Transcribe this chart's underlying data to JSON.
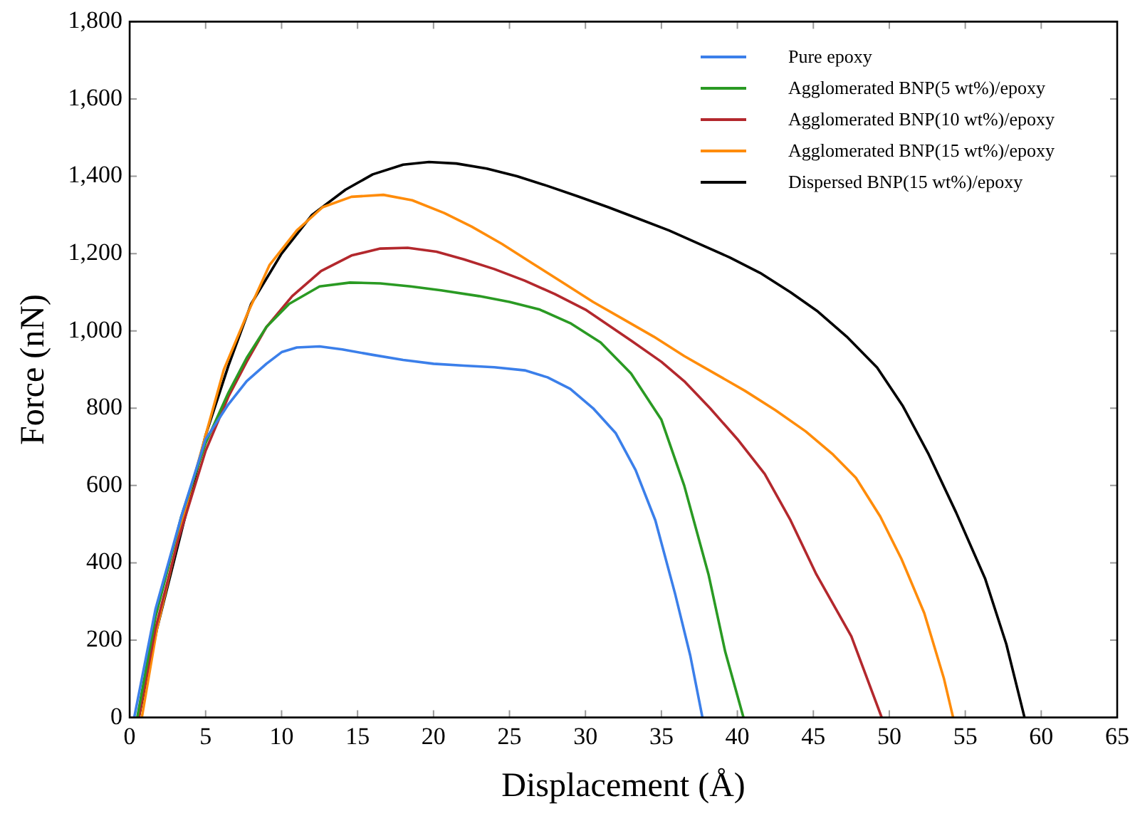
{
  "chart_data": {
    "type": "line",
    "xlabel": "Displacement (Å)",
    "ylabel": "Force (nN)",
    "xlim": [
      0,
      65
    ],
    "xticks": [
      0,
      5,
      10,
      15,
      20,
      25,
      30,
      35,
      40,
      45,
      50,
      55,
      60,
      65
    ],
    "ylim": [
      0,
      1800
    ],
    "yticks": [
      0,
      200,
      400,
      600,
      800,
      {
        "value": 1000,
        "label": "1,000"
      },
      {
        "value": 1200,
        "label": "1,200"
      },
      {
        "value": 1400,
        "label": "1,400"
      },
      {
        "value": 1600,
        "label": "1,600"
      },
      {
        "value": 1800,
        "label": "1,800"
      }
    ],
    "grid": false,
    "legend": "top right",
    "marker": "none",
    "line_style": "solid",
    "series": [
      {
        "name": "Pure epoxy",
        "color": "#3b7fea",
        "x": [
          0.3,
          1.7,
          3.4,
          5,
          6.5,
          7.7,
          9,
          10,
          11,
          12.5,
          14,
          16,
          18,
          20,
          22,
          24,
          26,
          27.5,
          29,
          30.5,
          32,
          33.3,
          34.6,
          35.9,
          36.9,
          37.7
        ],
        "values": [
          0,
          280,
          520,
          720,
          810,
          870,
          915,
          945,
          957,
          960,
          952,
          938,
          925,
          915,
          910,
          906,
          898,
          880,
          850,
          800,
          735,
          640,
          510,
          320,
          160,
          0
        ]
      },
      {
        "name": "Agglomerated BNP(5 wt%)/epoxy",
        "color": "#2a9a23",
        "x": [
          0.5,
          1.7,
          3.4,
          5,
          6.5,
          7.7,
          9,
          10.5,
          12.5,
          14.5,
          16.5,
          18.5,
          20.5,
          23,
          25,
          27,
          29,
          31,
          33,
          35,
          36.5,
          38.1,
          39.2,
          40.4
        ],
        "values": [
          0,
          260,
          520,
          710,
          840,
          930,
          1010,
          1070,
          1115,
          1125,
          1123,
          1115,
          1105,
          1090,
          1075,
          1055,
          1020,
          970,
          890,
          770,
          600,
          370,
          170,
          0
        ]
      },
      {
        "name": "Agglomerated BNP(10 wt%)/epoxy",
        "color": "#b3282d",
        "x": [
          0.6,
          1.7,
          3.2,
          5,
          6.5,
          7.7,
          9,
          10.7,
          12.6,
          14.6,
          16.5,
          18.3,
          20.2,
          22,
          24,
          26,
          28,
          30,
          33,
          35,
          36.5,
          38.2,
          40,
          41.8,
          43.5,
          45.2,
          47.5,
          49.5
        ],
        "values": [
          0,
          230,
          460,
          690,
          830,
          920,
          1010,
          1090,
          1155,
          1195,
          1213,
          1215,
          1205,
          1185,
          1160,
          1130,
          1095,
          1055,
          975,
          920,
          870,
          800,
          720,
          630,
          510,
          370,
          210,
          0
        ]
      },
      {
        "name": "Agglomerated BNP(15 wt%)/epoxy",
        "color": "#ff8c0a",
        "x": [
          0.8,
          1.8,
          3.4,
          5,
          6.2,
          7.7,
          9.2,
          11,
          12.7,
          14.6,
          16.7,
          18.6,
          20.7,
          22.5,
          24.5,
          26.5,
          28.5,
          30.5,
          32.5,
          34.5,
          36.5,
          38.5,
          40.5,
          42.5,
          44.5,
          46.3,
          47.8,
          49.4,
          50.8,
          52.3,
          53.6,
          54.2
        ],
        "values": [
          0,
          230,
          500,
          730,
          900,
          1040,
          1170,
          1260,
          1320,
          1347,
          1352,
          1338,
          1305,
          1270,
          1225,
          1175,
          1125,
          1075,
          1030,
          985,
          935,
          890,
          845,
          795,
          740,
          680,
          620,
          520,
          410,
          270,
          100,
          0
        ]
      },
      {
        "name": "Dispersed BNP(15 wt%)/epoxy",
        "color": "#000000",
        "x": [
          0.6,
          1.8,
          3.4,
          5,
          6.5,
          8,
          10,
          12,
          14.2,
          16,
          18,
          19.7,
          21.5,
          23.5,
          25.5,
          27.5,
          29.5,
          31.5,
          33.5,
          35.5,
          37.5,
          39.5,
          41.5,
          43.5,
          45.3,
          47.2,
          49.2,
          50.9,
          52.6,
          54.4,
          56.3,
          57.7,
          58.9
        ],
        "values": [
          0,
          230,
          480,
          730,
          910,
          1070,
          1200,
          1300,
          1365,
          1405,
          1430,
          1437,
          1433,
          1420,
          1400,
          1375,
          1348,
          1320,
          1290,
          1260,
          1225,
          1190,
          1150,
          1100,
          1050,
          985,
          905,
          805,
          680,
          530,
          360,
          190,
          0
        ]
      }
    ]
  }
}
